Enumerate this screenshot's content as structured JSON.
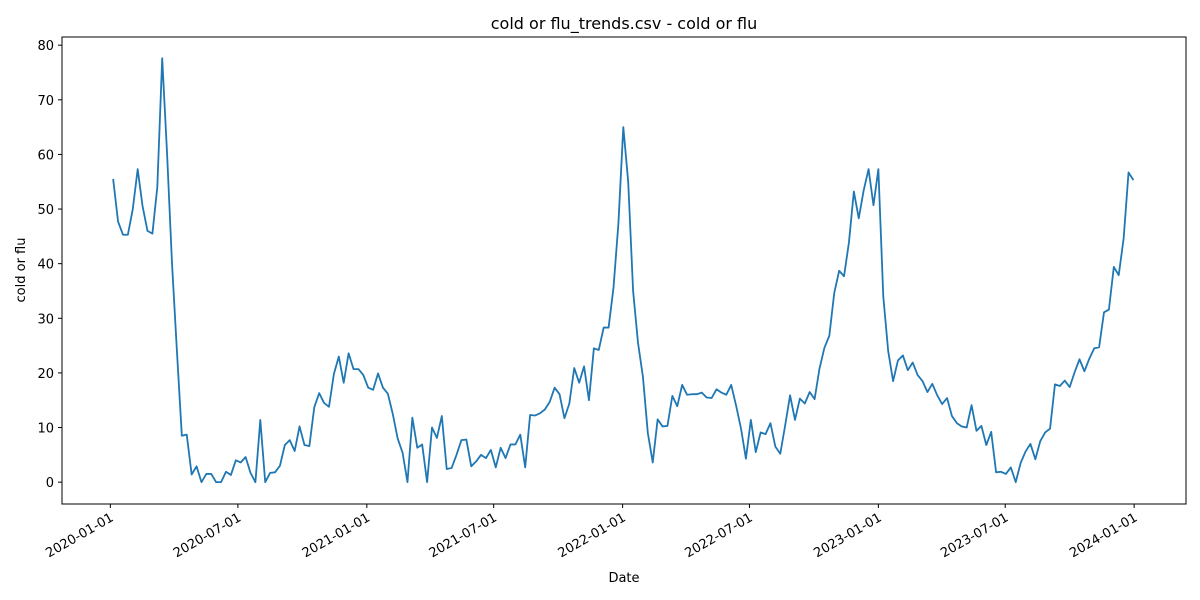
{
  "chart_data": {
    "type": "line",
    "title": "cold or flu_trends.csv - cold or flu",
    "x_label": "Date",
    "y_label": "cold or flu",
    "x": [
      "2020-01-05",
      "2020-01-12",
      "2020-01-19",
      "2020-01-26",
      "2020-02-02",
      "2020-02-09",
      "2020-02-16",
      "2020-02-23",
      "2020-03-01",
      "2020-03-08",
      "2020-03-15",
      "2020-03-22",
      "2020-03-29",
      "2020-04-05",
      "2020-04-12",
      "2020-04-19",
      "2020-04-26",
      "2020-05-03",
      "2020-05-10",
      "2020-05-17",
      "2020-05-24",
      "2020-05-31",
      "2020-06-07",
      "2020-06-14",
      "2020-06-21",
      "2020-06-28",
      "2020-07-05",
      "2020-07-12",
      "2020-07-19",
      "2020-07-26",
      "2020-08-02",
      "2020-08-09",
      "2020-08-16",
      "2020-08-23",
      "2020-08-30",
      "2020-09-06",
      "2020-09-13",
      "2020-09-20",
      "2020-09-27",
      "2020-10-04",
      "2020-10-11",
      "2020-10-18",
      "2020-10-25",
      "2020-11-01",
      "2020-11-08",
      "2020-11-15",
      "2020-11-22",
      "2020-11-29",
      "2020-12-06",
      "2020-12-13",
      "2020-12-20",
      "2020-12-27",
      "2021-01-03",
      "2021-01-10",
      "2021-01-17",
      "2021-01-24",
      "2021-01-31",
      "2021-02-07",
      "2021-02-14",
      "2021-02-21",
      "2021-02-28",
      "2021-03-07",
      "2021-03-14",
      "2021-03-21",
      "2021-03-28",
      "2021-04-04",
      "2021-04-11",
      "2021-04-18",
      "2021-04-25",
      "2021-05-02",
      "2021-05-09",
      "2021-05-16",
      "2021-05-23",
      "2021-05-30",
      "2021-06-06",
      "2021-06-13",
      "2021-06-20",
      "2021-06-27",
      "2021-07-04",
      "2021-07-11",
      "2021-07-18",
      "2021-07-25",
      "2021-08-01",
      "2021-08-08",
      "2021-08-15",
      "2021-08-22",
      "2021-08-29",
      "2021-09-05",
      "2021-09-12",
      "2021-09-19",
      "2021-09-26",
      "2021-10-03",
      "2021-10-10",
      "2021-10-17",
      "2021-10-24",
      "2021-10-31",
      "2021-11-07",
      "2021-11-14",
      "2021-11-21",
      "2021-11-28",
      "2021-12-05",
      "2021-12-12",
      "2021-12-19",
      "2021-12-26",
      "2022-01-02",
      "2022-01-09",
      "2022-01-16",
      "2022-01-23",
      "2022-01-30",
      "2022-02-06",
      "2022-02-13",
      "2022-02-20",
      "2022-02-27",
      "2022-03-06",
      "2022-03-13",
      "2022-03-20",
      "2022-03-27",
      "2022-04-03",
      "2022-04-10",
      "2022-04-17",
      "2022-04-24",
      "2022-05-01",
      "2022-05-08",
      "2022-05-15",
      "2022-05-22",
      "2022-05-29",
      "2022-06-05",
      "2022-06-12",
      "2022-06-19",
      "2022-06-26",
      "2022-07-03",
      "2022-07-10",
      "2022-07-17",
      "2022-07-24",
      "2022-07-31",
      "2022-08-07",
      "2022-08-14",
      "2022-08-21",
      "2022-08-28",
      "2022-09-04",
      "2022-09-11",
      "2022-09-18",
      "2022-09-25",
      "2022-10-02",
      "2022-10-09",
      "2022-10-16",
      "2022-10-23",
      "2022-10-30",
      "2022-11-06",
      "2022-11-13",
      "2022-11-20",
      "2022-11-27",
      "2022-12-04",
      "2022-12-11",
      "2022-12-18",
      "2022-12-25",
      "2023-01-01",
      "2023-01-08",
      "2023-01-15",
      "2023-01-22",
      "2023-01-29",
      "2023-02-05",
      "2023-02-12",
      "2023-02-19",
      "2023-02-26",
      "2023-03-05",
      "2023-03-12",
      "2023-03-19",
      "2023-03-26",
      "2023-04-02",
      "2023-04-09",
      "2023-04-16",
      "2023-04-23",
      "2023-04-30",
      "2023-05-07",
      "2023-05-14",
      "2023-05-21",
      "2023-05-28",
      "2023-06-04",
      "2023-06-11",
      "2023-06-18",
      "2023-06-25",
      "2023-07-02",
      "2023-07-09",
      "2023-07-16",
      "2023-07-23",
      "2023-07-30",
      "2023-08-06",
      "2023-08-13",
      "2023-08-20",
      "2023-08-27",
      "2023-09-03",
      "2023-09-10",
      "2023-09-17",
      "2023-09-24",
      "2023-10-01",
      "2023-10-08",
      "2023-10-15",
      "2023-10-22",
      "2023-10-29",
      "2023-11-05",
      "2023-11-12",
      "2023-11-19",
      "2023-11-26",
      "2023-12-03",
      "2023-12-10",
      "2023-12-17",
      "2023-12-24",
      "2023-12-31"
    ],
    "values": [
      55.5,
      47.7,
      45.3,
      45.3,
      50,
      57.3,
      50.5,
      46,
      45.5,
      54,
      77.6,
      60,
      40,
      24,
      8.5,
      8.7,
      1.4,
      2.9,
      0,
      1.5,
      1.5,
      0,
      0,
      1.9,
      1.3,
      4,
      3.6,
      4.6,
      1.7,
      0,
      11.4,
      0,
      1.7,
      1.8,
      3,
      6.8,
      7.7,
      5.7,
      10.2,
      6.8,
      6.6,
      13.7,
      16.3,
      14.5,
      13.8,
      19.8,
      23,
      18.2,
      23.6,
      20.7,
      20.7,
      19.6,
      17.3,
      16.9,
      19.9,
      17.3,
      16.2,
      12.5,
      8,
      5.4,
      0,
      11.8,
      6.3,
      6.9,
      0,
      10,
      8.1,
      12.1,
      2.4,
      2.6,
      5,
      7.7,
      7.8,
      2.9,
      3.8,
      5,
      4.4,
      5.9,
      2.7,
      6.3,
      4.4,
      6.9,
      6.9,
      8.7,
      2.7,
      12.3,
      12.2,
      12.6,
      13.3,
      14.7,
      17.3,
      16.1,
      11.7,
      14.4,
      20.9,
      18.2,
      21.2,
      15,
      24.5,
      24.2,
      28.3,
      28.3,
      35.6,
      47.3,
      65,
      55,
      35,
      25.5,
      19.3,
      9,
      3.6,
      11.5,
      10.2,
      10.3,
      15.8,
      13.9,
      17.8,
      16,
      16.1,
      16.1,
      16.4,
      15.5,
      15.4,
      17,
      16.4,
      16,
      17.8,
      14,
      9.8,
      4.3,
      11.4,
      5.5,
      9.1,
      8.8,
      10.8,
      6.5,
      5.2,
      10.4,
      15.9,
      11.4,
      15.3,
      14.4,
      16.5,
      15.2,
      20.8,
      24.6,
      26.8,
      34.6,
      38.7,
      37.7,
      43.9,
      53.2,
      48.3,
      53.4,
      57.3,
      50.7,
      57.3,
      34,
      24,
      18.5,
      22.3,
      23.2,
      20.5,
      21.9,
      19.6,
      18.5,
      16.5,
      18,
      15.9,
      14.3,
      15.4,
      12.1,
      10.8,
      10.2,
      10,
      14.1,
      9.4,
      10.3,
      6.8,
      9.2,
      1.8,
      1.9,
      1.5,
      2.7,
      0,
      3.5,
      5.6,
      7,
      4.2,
      7.5,
      9.1,
      9.8,
      17.9,
      17.6,
      18.6,
      17.4,
      20.1,
      22.5,
      20.3,
      22.6,
      24.5,
      24.7,
      31.1,
      31.6,
      39.4,
      37.9,
      44.6,
      56.7,
      55.3
    ],
    "color": "#1f77b4",
    "xlim": [
      "2019-10-24",
      "2024-03-15"
    ],
    "xticks": [
      "2020-01-01",
      "2020-07-01",
      "2021-01-01",
      "2021-07-01",
      "2022-01-01",
      "2022-07-01",
      "2023-01-01",
      "2023-07-01",
      "2024-01-01"
    ],
    "ylim": [
      -4,
      81.5
    ],
    "yticks": [
      0,
      10,
      20,
      30,
      40,
      50,
      60,
      70,
      80
    ],
    "grid": false
  }
}
